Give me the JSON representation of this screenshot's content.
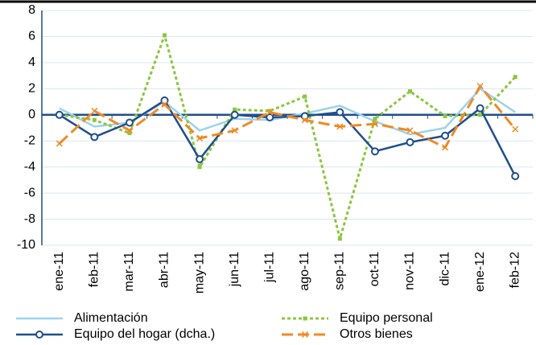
{
  "chart_data": {
    "type": "line",
    "categories": [
      "ene-11",
      "feb-11",
      "mar-11",
      "abr-11",
      "may-11",
      "jun-11",
      "jul-11",
      "ago-11",
      "sep-11",
      "oct-11",
      "nov-11",
      "dic-11",
      "ene-12",
      "feb-12"
    ],
    "series": [
      {
        "name": "Alimentación",
        "color": "#9dd3ee",
        "values": [
          0.5,
          -0.9,
          -0.6,
          1.0,
          -1.2,
          -0.3,
          -0.4,
          0.1,
          0.7,
          -0.5,
          -1.5,
          -1.0,
          2.0,
          0.2
        ]
      },
      {
        "name": "Equipo personal",
        "color": "#8cc63f",
        "values": [
          0,
          -0.4,
          -1.4,
          6.1,
          -4.0,
          0.4,
          0.3,
          1.4,
          -9.5,
          -0.3,
          1.8,
          -0.1,
          0.0,
          2.9
        ]
      },
      {
        "name": "Equipo del hogar (dcha.)",
        "color": "#1f4e8c",
        "values": [
          0,
          -1.7,
          -0.6,
          1.1,
          -3.4,
          0.0,
          -0.2,
          -0.1,
          0.2,
          -2.8,
          -2.1,
          -1.6,
          0.5,
          -4.7
        ]
      },
      {
        "name": "Otros bienes",
        "color": "#f08a24",
        "values": [
          -2.2,
          0.3,
          -1.2,
          0.8,
          -1.8,
          -1.2,
          0.2,
          -0.4,
          -0.9,
          -0.7,
          -1.2,
          -2.5,
          2.2,
          -1.1
        ]
      }
    ],
    "ylim": [
      -10,
      8
    ],
    "yticks": [
      -10,
      -8,
      -6,
      -4,
      -2,
      0,
      2,
      4,
      6,
      8
    ],
    "grid": true
  }
}
